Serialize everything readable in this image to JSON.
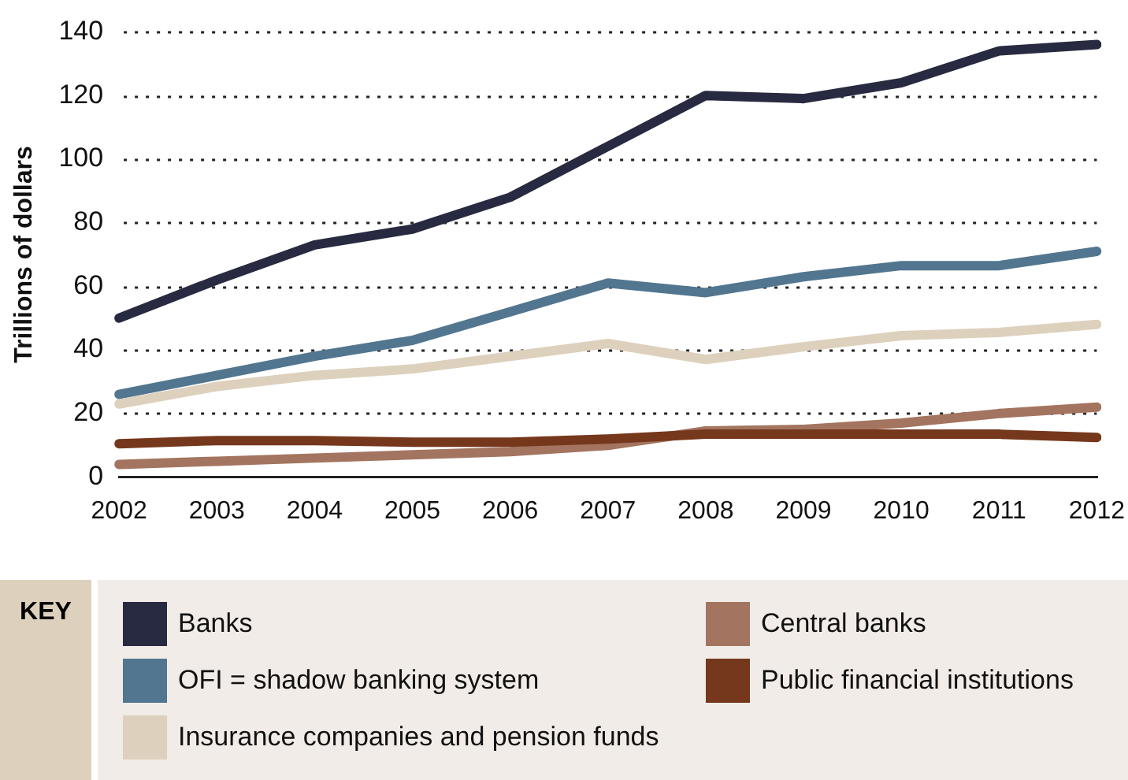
{
  "chart_data": {
    "type": "line",
    "ylabel": "Trillions of dollars",
    "legend_title": "KEY",
    "categories": [
      "2002",
      "2003",
      "2004",
      "2005",
      "2006",
      "2007",
      "2008",
      "2009",
      "2010",
      "2011",
      "2012"
    ],
    "series": [
      {
        "name": "Banks",
        "color": "#272a40",
        "values": [
          50,
          62,
          73,
          78,
          88,
          104,
          120,
          119,
          124,
          134,
          136
        ]
      },
      {
        "name": "OFI = shadow banking system",
        "color": "#52768f",
        "values": [
          26,
          32,
          38,
          43,
          52,
          61,
          58,
          63,
          66.5,
          66.5,
          71
        ]
      },
      {
        "name": "Insurance companies and pension funds",
        "color": "#ddd1bd",
        "values": [
          23,
          28.5,
          32,
          34,
          38,
          42,
          37,
          41,
          44.5,
          45.5,
          48
        ]
      },
      {
        "name": "Central banks",
        "color": "#a37560",
        "values": [
          4,
          5,
          6,
          7,
          8,
          10,
          14.5,
          15,
          17,
          20,
          22
        ]
      },
      {
        "name": "Public financial institutions",
        "color": "#76381c",
        "values": [
          10.5,
          11.5,
          11.5,
          11,
          11,
          12,
          13.5,
          13.5,
          13.5,
          13.5,
          12.5
        ]
      }
    ],
    "ylim": [
      0,
      140
    ],
    "yticks": [
      0,
      20,
      40,
      60,
      80,
      100,
      120,
      140
    ],
    "grid": "y",
    "legend": "bottom",
    "marker": "none",
    "line_style": "solid"
  }
}
